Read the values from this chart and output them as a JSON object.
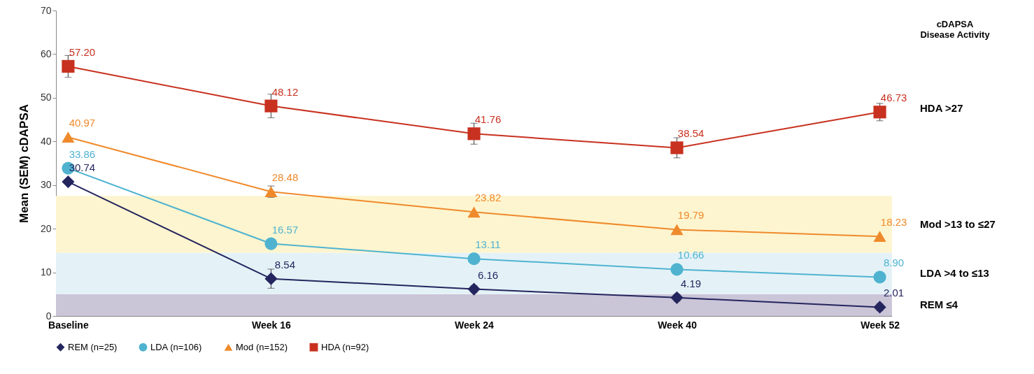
{
  "chart_data": {
    "type": "line",
    "ylabel": "Mean (SEM) cDAPSA",
    "categories": [
      "Baseline",
      "Week 16",
      "Week 24",
      "Week 40",
      "Week 52"
    ],
    "series": [
      {
        "name": "REM (n=25)",
        "color": "#24255e",
        "marker": "diamond",
        "values": [
          30.74,
          8.54,
          6.16,
          4.19,
          2.01
        ],
        "value_labels": [
          "30.74",
          "8.54",
          "6.16",
          "4.19",
          "2.01"
        ],
        "errors": [
          null,
          2.2,
          0.8,
          0.8,
          0.8
        ]
      },
      {
        "name": "LDA (n=106)",
        "color": "#4fb3d0",
        "marker": "circle",
        "values": [
          33.86,
          16.57,
          13.11,
          10.66,
          8.9
        ],
        "value_labels": [
          "33.86",
          "16.57",
          "13.11",
          "10.66",
          "8.90"
        ]
      },
      {
        "name": "Mod (n=152)",
        "color": "#ef8a2c",
        "marker": "triangle",
        "values": [
          40.97,
          28.48,
          23.82,
          19.79,
          18.23
        ],
        "value_labels": [
          "40.97",
          "28.48",
          "23.82",
          "19.79",
          "18.23"
        ],
        "errors": [
          null,
          1.3,
          null,
          null,
          null
        ]
      },
      {
        "name": "HDA (n=92)",
        "color": "#c8311f",
        "marker": "square",
        "values": [
          57.2,
          48.12,
          41.76,
          38.54,
          46.73
        ],
        "value_labels": [
          "57.20",
          "48.12",
          "41.76",
          "38.54",
          "46.73"
        ],
        "errors": [
          2.5,
          2.7,
          2.4,
          2.3,
          2
        ]
      }
    ],
    "ylim": [
      0,
      70
    ],
    "yticks": [
      0,
      10,
      20,
      30,
      40,
      50,
      60,
      70
    ],
    "grid": false,
    "legend": "bottom",
    "bands": [
      {
        "axis": "y",
        "from": 0,
        "to": 5,
        "label": "REM     ≤4",
        "color": "#cbc5d8"
      },
      {
        "axis": "y",
        "from": 5,
        "to": 14.5,
        "label": "LDA     >4 to ≤13",
        "color": "#e4f2f7"
      },
      {
        "axis": "y",
        "from": 14.5,
        "to": 27.5,
        "label": "Mod     >13 to ≤27",
        "color": "#fdf5cf"
      }
    ],
    "annotations": [
      "cDAPSA\nDisease Activity",
      "HDA     >27"
    ]
  }
}
